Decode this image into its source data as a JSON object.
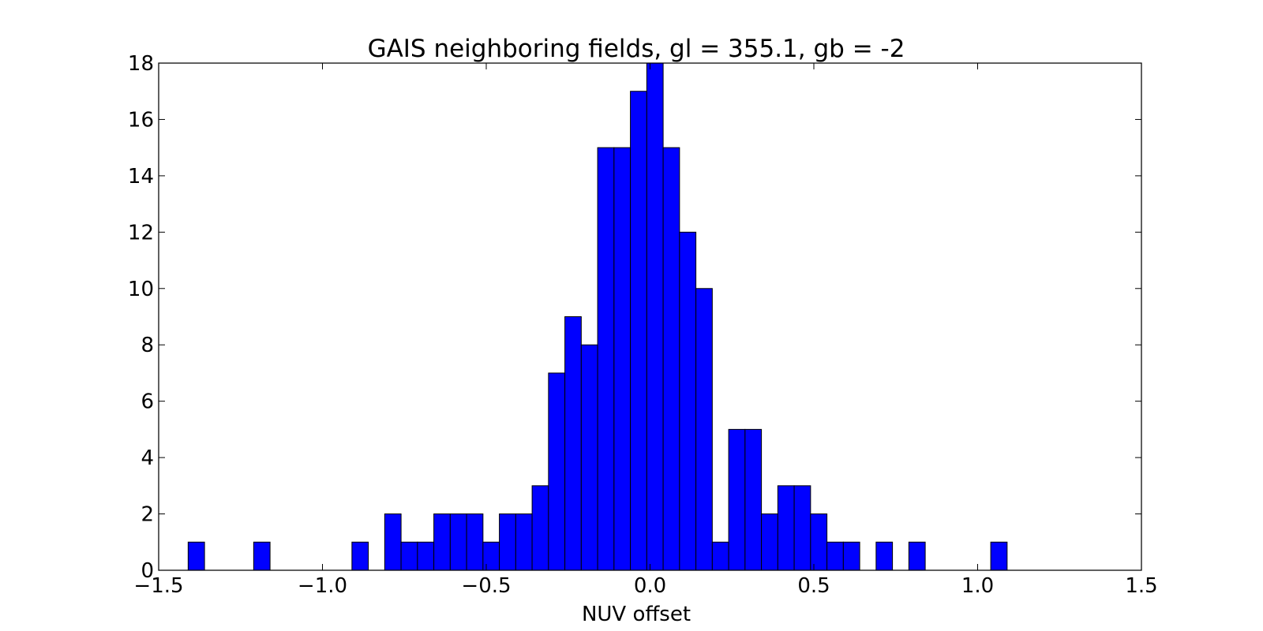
{
  "chart_data": {
    "type": "bar",
    "title": "GAIS neighboring fields, gl = 355.1, gb = -2",
    "xlabel": "NUV offset",
    "ylabel": "",
    "xlim": [
      -1.5,
      1.5
    ],
    "ylim": [
      0,
      18
    ],
    "grid": false,
    "bar_color": "#0000ff",
    "edge_color": "#000000",
    "x_ticks": [
      {
        "value": -1.5,
        "label": "−1.5"
      },
      {
        "value": -1.0,
        "label": "−1.0"
      },
      {
        "value": -0.5,
        "label": "−0.5"
      },
      {
        "value": 0.0,
        "label": "0.0"
      },
      {
        "value": 0.5,
        "label": "0.5"
      },
      {
        "value": 1.0,
        "label": "1.0"
      },
      {
        "value": 1.5,
        "label": "1.5"
      }
    ],
    "y_ticks": [
      {
        "value": 0,
        "label": "0"
      },
      {
        "value": 2,
        "label": "2"
      },
      {
        "value": 4,
        "label": "4"
      },
      {
        "value": 6,
        "label": "6"
      },
      {
        "value": 8,
        "label": "8"
      },
      {
        "value": 10,
        "label": "10"
      },
      {
        "value": 12,
        "label": "12"
      },
      {
        "value": 14,
        "label": "14"
      },
      {
        "value": 16,
        "label": "16"
      },
      {
        "value": 18,
        "label": "18"
      }
    ],
    "bins": [
      {
        "x0": -1.41,
        "x1": -1.36,
        "count": 1
      },
      {
        "x0": -1.21,
        "x1": -1.16,
        "count": 1
      },
      {
        "x0": -0.91,
        "x1": -0.86,
        "count": 1
      },
      {
        "x0": -0.81,
        "x1": -0.76,
        "count": 2
      },
      {
        "x0": -0.76,
        "x1": -0.71,
        "count": 1
      },
      {
        "x0": -0.71,
        "x1": -0.66,
        "count": 1
      },
      {
        "x0": -0.66,
        "x1": -0.61,
        "count": 2
      },
      {
        "x0": -0.61,
        "x1": -0.56,
        "count": 2
      },
      {
        "x0": -0.56,
        "x1": -0.51,
        "count": 2
      },
      {
        "x0": -0.51,
        "x1": -0.46,
        "count": 1
      },
      {
        "x0": -0.46,
        "x1": -0.41,
        "count": 2
      },
      {
        "x0": -0.41,
        "x1": -0.36,
        "count": 2
      },
      {
        "x0": -0.36,
        "x1": -0.31,
        "count": 3
      },
      {
        "x0": -0.31,
        "x1": -0.26,
        "count": 7
      },
      {
        "x0": -0.26,
        "x1": -0.21,
        "count": 9
      },
      {
        "x0": -0.21,
        "x1": -0.16,
        "count": 8
      },
      {
        "x0": -0.16,
        "x1": -0.11,
        "count": 15
      },
      {
        "x0": -0.11,
        "x1": -0.06,
        "count": 15
      },
      {
        "x0": -0.06,
        "x1": -0.01,
        "count": 17
      },
      {
        "x0": -0.01,
        "x1": 0.04,
        "count": 18
      },
      {
        "x0": 0.04,
        "x1": 0.09,
        "count": 15
      },
      {
        "x0": 0.09,
        "x1": 0.14,
        "count": 12
      },
      {
        "x0": 0.14,
        "x1": 0.19,
        "count": 10
      },
      {
        "x0": 0.19,
        "x1": 0.24,
        "count": 1
      },
      {
        "x0": 0.24,
        "x1": 0.29,
        "count": 5
      },
      {
        "x0": 0.29,
        "x1": 0.34,
        "count": 5
      },
      {
        "x0": 0.34,
        "x1": 0.39,
        "count": 2
      },
      {
        "x0": 0.39,
        "x1": 0.44,
        "count": 3
      },
      {
        "x0": 0.44,
        "x1": 0.49,
        "count": 3
      },
      {
        "x0": 0.49,
        "x1": 0.54,
        "count": 2
      },
      {
        "x0": 0.54,
        "x1": 0.59,
        "count": 1
      },
      {
        "x0": 0.59,
        "x1": 0.64,
        "count": 1
      },
      {
        "x0": 0.69,
        "x1": 0.74,
        "count": 1
      },
      {
        "x0": 0.79,
        "x1": 0.84,
        "count": 1
      },
      {
        "x0": 1.04,
        "x1": 1.09,
        "count": 1
      }
    ]
  }
}
